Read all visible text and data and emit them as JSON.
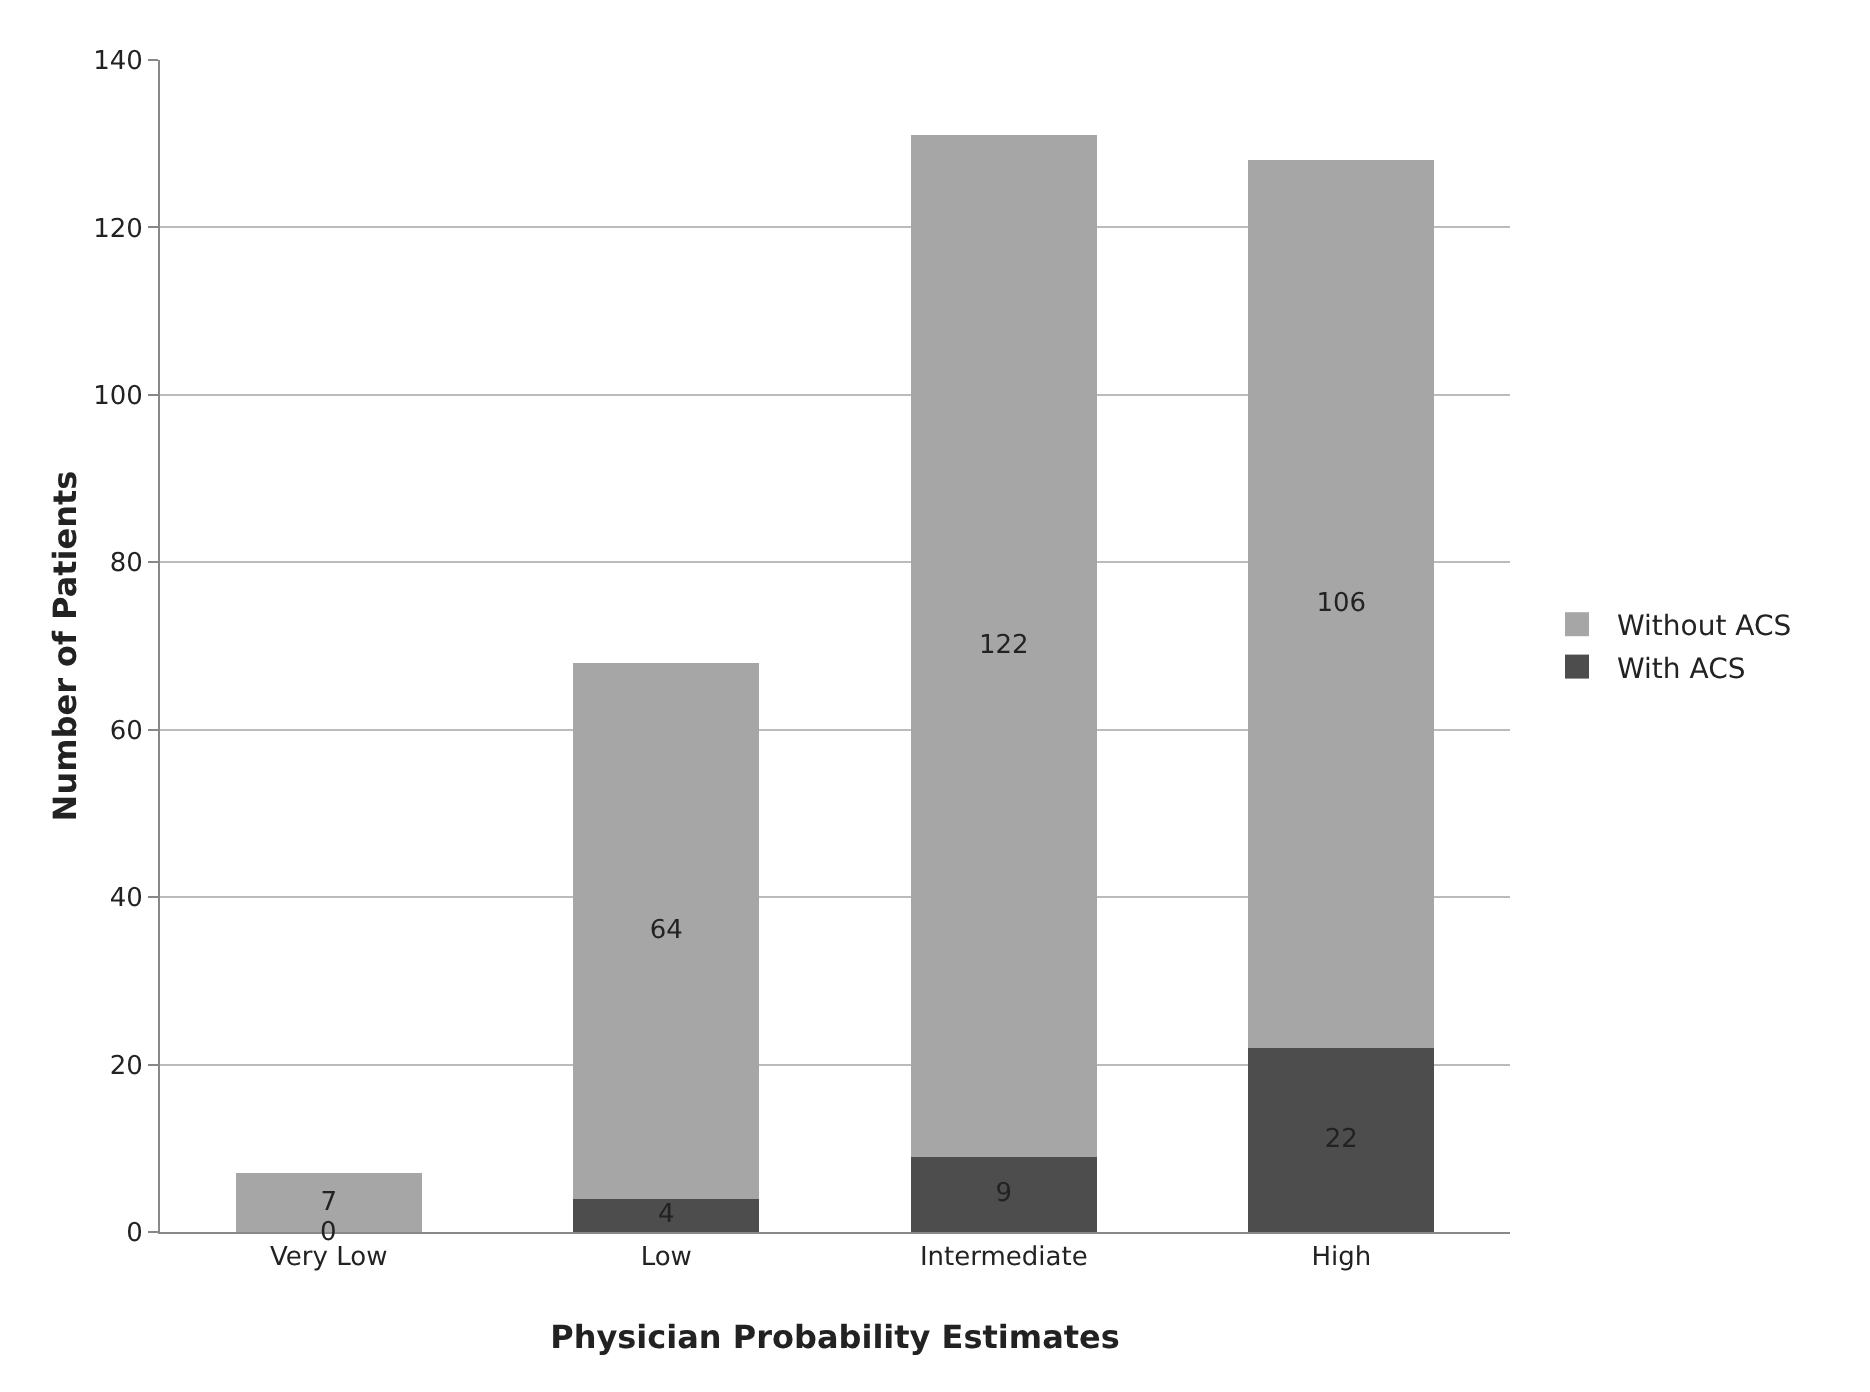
{
  "chart_data": {
    "type": "bar",
    "stacked": true,
    "xlabel": "Physician Probability Estimates",
    "ylabel": "Number of Patients",
    "categories": [
      "Very Low",
      "Low",
      "Intermediate",
      "High"
    ],
    "series": [
      {
        "name": "With ACS",
        "color": "#4d4d4d",
        "values": [
          0,
          4,
          9,
          22
        ]
      },
      {
        "name": "Without ACS",
        "color": "#a6a6a6",
        "values": [
          7,
          64,
          122,
          106
        ]
      }
    ],
    "ylim": [
      0,
      140
    ],
    "yticks": [
      0,
      20,
      40,
      60,
      80,
      100,
      120,
      140
    ],
    "grid": "y",
    "legend": "right",
    "data_labels": true
  }
}
